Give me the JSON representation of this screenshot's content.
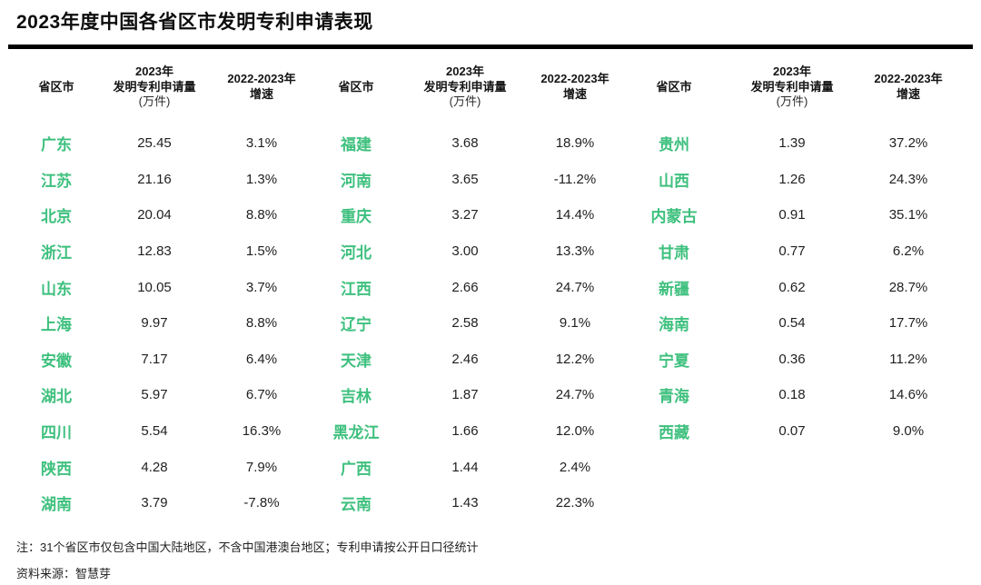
{
  "title": "2023年度中国各省区市发明专利申请表现",
  "colors": {
    "province_green": "#3ec07e",
    "rule_black": "#000000"
  },
  "table": {
    "header": {
      "province": "省区市",
      "applications": [
        "2023年",
        "发明专利申请量",
        "(万件)"
      ],
      "growth": [
        "2022-2023年",
        "增速"
      ]
    },
    "groups": [
      {
        "rows": [
          {
            "province": "广东",
            "applications": "25.45",
            "growth": "3.1%"
          },
          {
            "province": "江苏",
            "applications": "21.16",
            "growth": "1.3%"
          },
          {
            "province": "北京",
            "applications": "20.04",
            "growth": "8.8%"
          },
          {
            "province": "浙江",
            "applications": "12.83",
            "growth": "1.5%"
          },
          {
            "province": "山东",
            "applications": "10.05",
            "growth": "3.7%"
          },
          {
            "province": "上海",
            "applications": "9.97",
            "growth": "8.8%"
          },
          {
            "province": "安徽",
            "applications": "7.17",
            "growth": "6.4%"
          },
          {
            "province": "湖北",
            "applications": "5.97",
            "growth": "6.7%"
          },
          {
            "province": "四川",
            "applications": "5.54",
            "growth": "16.3%"
          },
          {
            "province": "陕西",
            "applications": "4.28",
            "growth": "7.9%"
          },
          {
            "province": "湖南",
            "applications": "3.79",
            "growth": "-7.8%"
          }
        ]
      },
      {
        "rows": [
          {
            "province": "福建",
            "applications": "3.68",
            "growth": "18.9%"
          },
          {
            "province": "河南",
            "applications": "3.65",
            "growth": "-11.2%"
          },
          {
            "province": "重庆",
            "applications": "3.27",
            "growth": "14.4%"
          },
          {
            "province": "河北",
            "applications": "3.00",
            "growth": "13.3%"
          },
          {
            "province": "江西",
            "applications": "2.66",
            "growth": "24.7%"
          },
          {
            "province": "辽宁",
            "applications": "2.58",
            "growth": "9.1%"
          },
          {
            "province": "天津",
            "applications": "2.46",
            "growth": "12.2%"
          },
          {
            "province": "吉林",
            "applications": "1.87",
            "growth": "24.7%"
          },
          {
            "province": "黑龙江",
            "applications": "1.66",
            "growth": "12.0%"
          },
          {
            "province": "广西",
            "applications": "1.44",
            "growth": "2.4%"
          },
          {
            "province": "云南",
            "applications": "1.43",
            "growth": "22.3%"
          }
        ]
      },
      {
        "rows": [
          {
            "province": "贵州",
            "applications": "1.39",
            "growth": "37.2%"
          },
          {
            "province": "山西",
            "applications": "1.26",
            "growth": "24.3%"
          },
          {
            "province": "内蒙古",
            "applications": "0.91",
            "growth": "35.1%"
          },
          {
            "province": "甘肃",
            "applications": "0.77",
            "growth": "6.2%"
          },
          {
            "province": "新疆",
            "applications": "0.62",
            "growth": "28.7%"
          },
          {
            "province": "海南",
            "applications": "0.54",
            "growth": "17.7%"
          },
          {
            "province": "宁夏",
            "applications": "0.36",
            "growth": "11.2%"
          },
          {
            "province": "青海",
            "applications": "0.18",
            "growth": "14.6%"
          },
          {
            "province": "西藏",
            "applications": "0.07",
            "growth": "9.0%"
          }
        ]
      }
    ]
  },
  "notes": {
    "note": "注：31个省区市仅包含中国大陆地区，不含中国港澳台地区；专利申请按公开日口径统计",
    "source": "资料来源：智慧芽"
  },
  "chart_data": {
    "type": "table",
    "title": "2023年度中国各省区市发明专利申请表现",
    "columns": [
      "省区市",
      "2023年发明专利申请量(万件)",
      "2022-2023年增速"
    ],
    "rows": [
      [
        "广东",
        25.45,
        "3.1%"
      ],
      [
        "江苏",
        21.16,
        "1.3%"
      ],
      [
        "北京",
        20.04,
        "8.8%"
      ],
      [
        "浙江",
        12.83,
        "1.5%"
      ],
      [
        "山东",
        10.05,
        "3.7%"
      ],
      [
        "上海",
        9.97,
        "8.8%"
      ],
      [
        "安徽",
        7.17,
        "6.4%"
      ],
      [
        "湖北",
        5.97,
        "6.7%"
      ],
      [
        "四川",
        5.54,
        "16.3%"
      ],
      [
        "陕西",
        4.28,
        "7.9%"
      ],
      [
        "湖南",
        3.79,
        "-7.8%"
      ],
      [
        "福建",
        3.68,
        "18.9%"
      ],
      [
        "河南",
        3.65,
        "-11.2%"
      ],
      [
        "重庆",
        3.27,
        "14.4%"
      ],
      [
        "河北",
        3.0,
        "13.3%"
      ],
      [
        "江西",
        2.66,
        "24.7%"
      ],
      [
        "辽宁",
        2.58,
        "9.1%"
      ],
      [
        "天津",
        2.46,
        "12.2%"
      ],
      [
        "吉林",
        1.87,
        "24.7%"
      ],
      [
        "黑龙江",
        1.66,
        "12.0%"
      ],
      [
        "广西",
        1.44,
        "2.4%"
      ],
      [
        "云南",
        1.43,
        "22.3%"
      ],
      [
        "贵州",
        1.39,
        "37.2%"
      ],
      [
        "山西",
        1.26,
        "24.3%"
      ],
      [
        "内蒙古",
        0.91,
        "35.1%"
      ],
      [
        "甘肃",
        0.77,
        "6.2%"
      ],
      [
        "新疆",
        0.62,
        "28.7%"
      ],
      [
        "海南",
        0.54,
        "17.7%"
      ],
      [
        "宁夏",
        0.36,
        "11.2%"
      ],
      [
        "青海",
        0.18,
        "14.6%"
      ],
      [
        "西藏",
        0.07,
        "9.0%"
      ]
    ]
  }
}
